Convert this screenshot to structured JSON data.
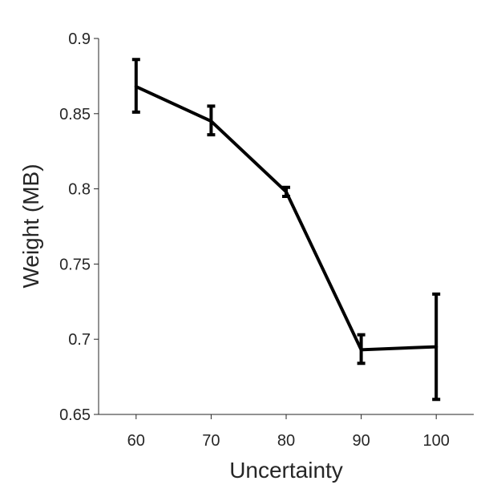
{
  "chart_data": {
    "type": "line",
    "title": "",
    "xlabel": "Uncertainty",
    "ylabel": "Weight (MB)",
    "x": [
      60,
      70,
      80,
      90,
      100
    ],
    "x_tick_labels": [
      "60",
      "70",
      "80",
      "90",
      "100"
    ],
    "xlim": [
      55,
      105
    ],
    "ylim": [
      0.65,
      0.9
    ],
    "y_ticks": [
      0.65,
      0.7,
      0.75,
      0.8,
      0.85,
      0.9
    ],
    "y_tick_labels": [
      "0.65",
      "0.7",
      "0.75",
      "0.8",
      "0.85",
      "0.9"
    ],
    "grid": false,
    "series": [
      {
        "values": [
          0.868,
          0.845,
          0.798,
          0.693,
          0.695
        ],
        "error_low": [
          0.851,
          0.836,
          0.795,
          0.684,
          0.66
        ],
        "error_high": [
          0.886,
          0.855,
          0.801,
          0.703,
          0.73
        ],
        "color": "#000000"
      }
    ]
  }
}
